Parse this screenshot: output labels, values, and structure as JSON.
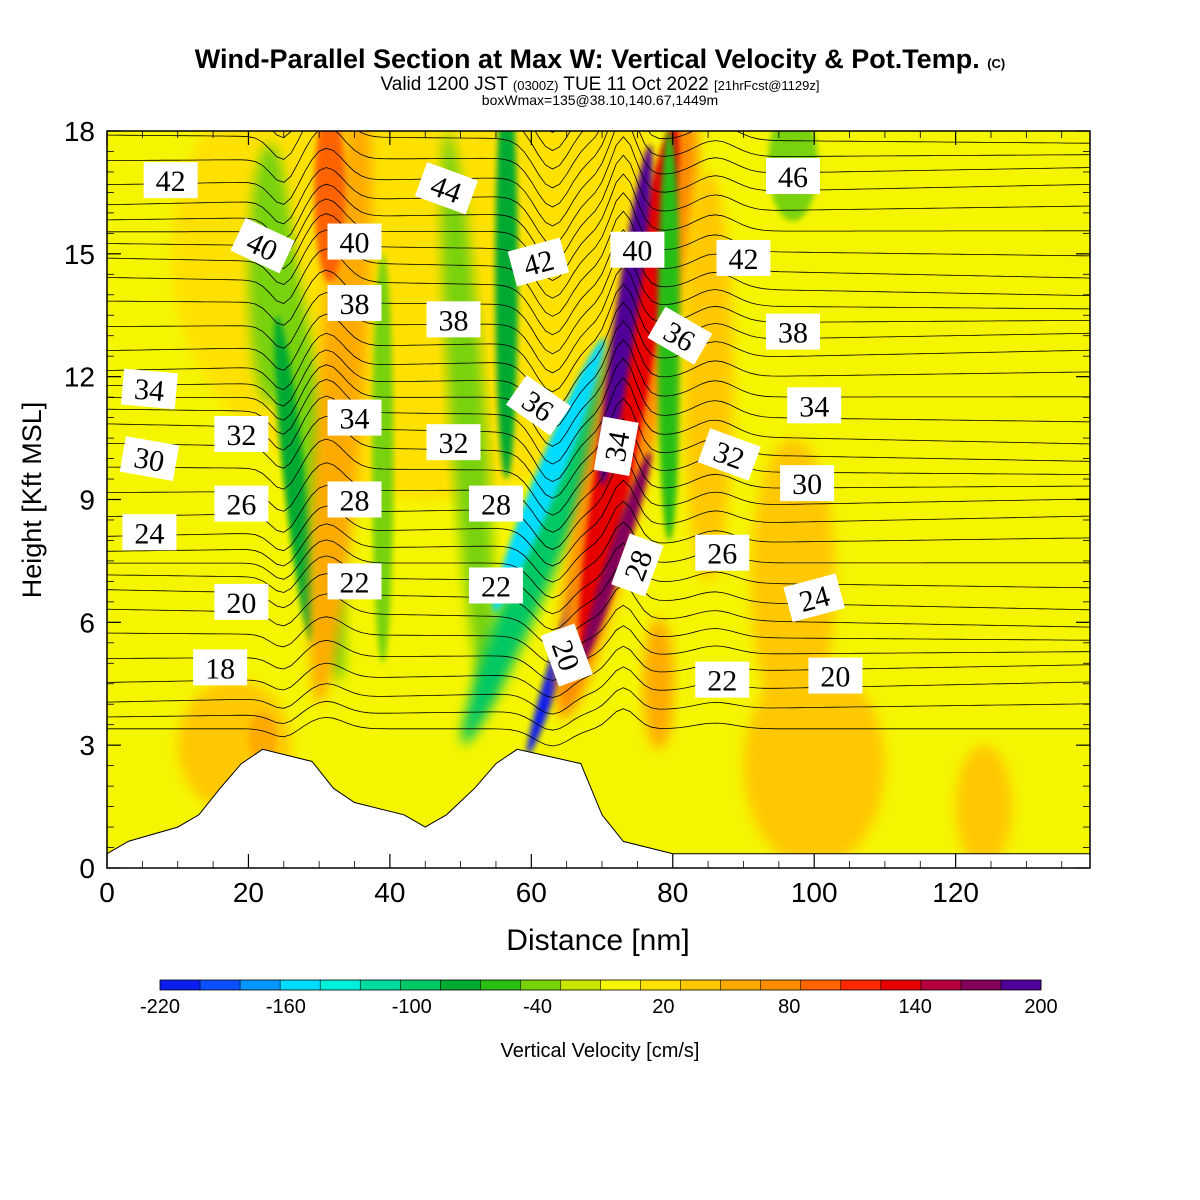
{
  "header": {
    "title_main": "Wind-Parallel Section at Max W: Vertical Velocity & Pot.Temp.",
    "title_copy": "(C)",
    "valid_prefix": "Valid 1200 JST",
    "valid_utc": "(0300Z)",
    "valid_date": "TUE 11 Oct 2022",
    "valid_fcst": "[21hrFcst@1129z]",
    "boxinfo": "boxWmax=135@38.10,140.67,1449m"
  },
  "chart_data": {
    "type": "heatmap",
    "title": "Wind-Parallel Section at Max W: Vertical Velocity & Pot.Temp.",
    "xlabel": "Distance [nm]",
    "ylabel": "Height [Kft MSL]",
    "xlim": [
      0,
      139
    ],
    "ylim": [
      0,
      18
    ],
    "xticks": [
      0,
      20,
      40,
      60,
      80,
      100,
      120
    ],
    "yticks": [
      0,
      3,
      6,
      9,
      12,
      15,
      18
    ],
    "colorbar": {
      "label": "Vertical Velocity [cm/s]",
      "tick_labels": [
        -220,
        -160,
        -100,
        -40,
        20,
        80,
        140,
        200
      ],
      "range": [
        -220,
        200
      ],
      "colors": [
        "#0a1ef0",
        "#0a50ff",
        "#0596ff",
        "#00dcff",
        "#00f0dc",
        "#00dca0",
        "#00c864",
        "#00aa32",
        "#28be14",
        "#78d20a",
        "#c8e600",
        "#f5f500",
        "#ffe100",
        "#ffc800",
        "#ffaa00",
        "#ff8c00",
        "#ff6400",
        "#ff2800",
        "#e60000",
        "#b4003c",
        "#82005a",
        "#500096"
      ]
    },
    "shaded_features": [
      {
        "field": "vertical_velocity",
        "kind": "downdraft core",
        "x_nm": [
          58,
          69
        ],
        "height_kft": [
          3,
          12
        ],
        "min_value": -220
      },
      {
        "field": "vertical_velocity",
        "kind": "updraft core",
        "x_nm": [
          70,
          78
        ],
        "height_kft": [
          3,
          18
        ],
        "max_value": 200
      },
      {
        "field": "vertical_velocity",
        "kind": "updraft band",
        "x_nm": [
          29,
          36
        ],
        "height_kft": [
          4,
          18
        ],
        "max_value": 90
      },
      {
        "field": "vertical_velocity",
        "kind": "downdraft band",
        "x_nm": [
          22,
          30
        ],
        "height_kft": [
          5,
          16
        ],
        "min_value": -60
      }
    ],
    "isentrope_labels": [
      {
        "value": 42,
        "x_nm": 9,
        "h_kft": 16.8
      },
      {
        "value": 40,
        "x_nm": 22,
        "h_kft": 15.2
      },
      {
        "value": 40,
        "x_nm": 35,
        "h_kft": 15.3
      },
      {
        "value": 44,
        "x_nm": 48,
        "h_kft": 16.6
      },
      {
        "value": 42,
        "x_nm": 61,
        "h_kft": 14.8
      },
      {
        "value": 40,
        "x_nm": 75,
        "h_kft": 15.1
      },
      {
        "value": 42,
        "x_nm": 90,
        "h_kft": 14.9
      },
      {
        "value": 46,
        "x_nm": 97,
        "h_kft": 16.9
      },
      {
        "value": 38,
        "x_nm": 35,
        "h_kft": 13.8
      },
      {
        "value": 38,
        "x_nm": 49,
        "h_kft": 13.4
      },
      {
        "value": 36,
        "x_nm": 81,
        "h_kft": 13.0
      },
      {
        "value": 38,
        "x_nm": 97,
        "h_kft": 13.1
      },
      {
        "value": 34,
        "x_nm": 6,
        "h_kft": 11.7
      },
      {
        "value": 32,
        "x_nm": 19,
        "h_kft": 10.6
      },
      {
        "value": 34,
        "x_nm": 35,
        "h_kft": 11.0
      },
      {
        "value": 32,
        "x_nm": 49,
        "h_kft": 10.4
      },
      {
        "value": 36,
        "x_nm": 61,
        "h_kft": 11.3
      },
      {
        "value": 34,
        "x_nm": 72,
        "h_kft": 10.3
      },
      {
        "value": 32,
        "x_nm": 88,
        "h_kft": 10.1
      },
      {
        "value": 34,
        "x_nm": 100,
        "h_kft": 11.3
      },
      {
        "value": 30,
        "x_nm": 6,
        "h_kft": 10.0
      },
      {
        "value": 26,
        "x_nm": 19,
        "h_kft": 8.9
      },
      {
        "value": 28,
        "x_nm": 35,
        "h_kft": 9.0
      },
      {
        "value": 28,
        "x_nm": 55,
        "h_kft": 8.9
      },
      {
        "value": 30,
        "x_nm": 99,
        "h_kft": 9.4
      },
      {
        "value": 24,
        "x_nm": 6,
        "h_kft": 8.2
      },
      {
        "value": 20,
        "x_nm": 19,
        "h_kft": 6.5
      },
      {
        "value": 22,
        "x_nm": 35,
        "h_kft": 7.0
      },
      {
        "value": 22,
        "x_nm": 55,
        "h_kft": 6.9
      },
      {
        "value": 28,
        "x_nm": 75,
        "h_kft": 7.4
      },
      {
        "value": 26,
        "x_nm": 87,
        "h_kft": 7.7
      },
      {
        "value": 24,
        "x_nm": 100,
        "h_kft": 6.6
      },
      {
        "value": 18,
        "x_nm": 16,
        "h_kft": 4.9
      },
      {
        "value": 20,
        "x_nm": 65,
        "h_kft": 5.2
      },
      {
        "value": 22,
        "x_nm": 87,
        "h_kft": 4.6
      },
      {
        "value": 20,
        "x_nm": 103,
        "h_kft": 4.7
      }
    ],
    "terrain_profile_kft": [
      [
        0,
        0.35
      ],
      [
        3,
        0.65
      ],
      [
        10,
        1.0
      ],
      [
        13,
        1.3
      ],
      [
        16,
        1.95
      ],
      [
        19,
        2.55
      ],
      [
        22,
        2.9
      ],
      [
        29,
        2.6
      ],
      [
        32,
        1.95
      ],
      [
        35,
        1.6
      ],
      [
        42,
        1.3
      ],
      [
        45,
        1.0
      ],
      [
        48,
        1.3
      ],
      [
        52,
        1.95
      ],
      [
        55,
        2.55
      ],
      [
        58,
        2.9
      ],
      [
        67,
        2.55
      ],
      [
        70,
        1.3
      ],
      [
        73,
        0.65
      ],
      [
        80,
        0.35
      ],
      [
        139,
        0.35
      ]
    ]
  },
  "colorbar_title": "Vertical Velocity [cm/s]"
}
